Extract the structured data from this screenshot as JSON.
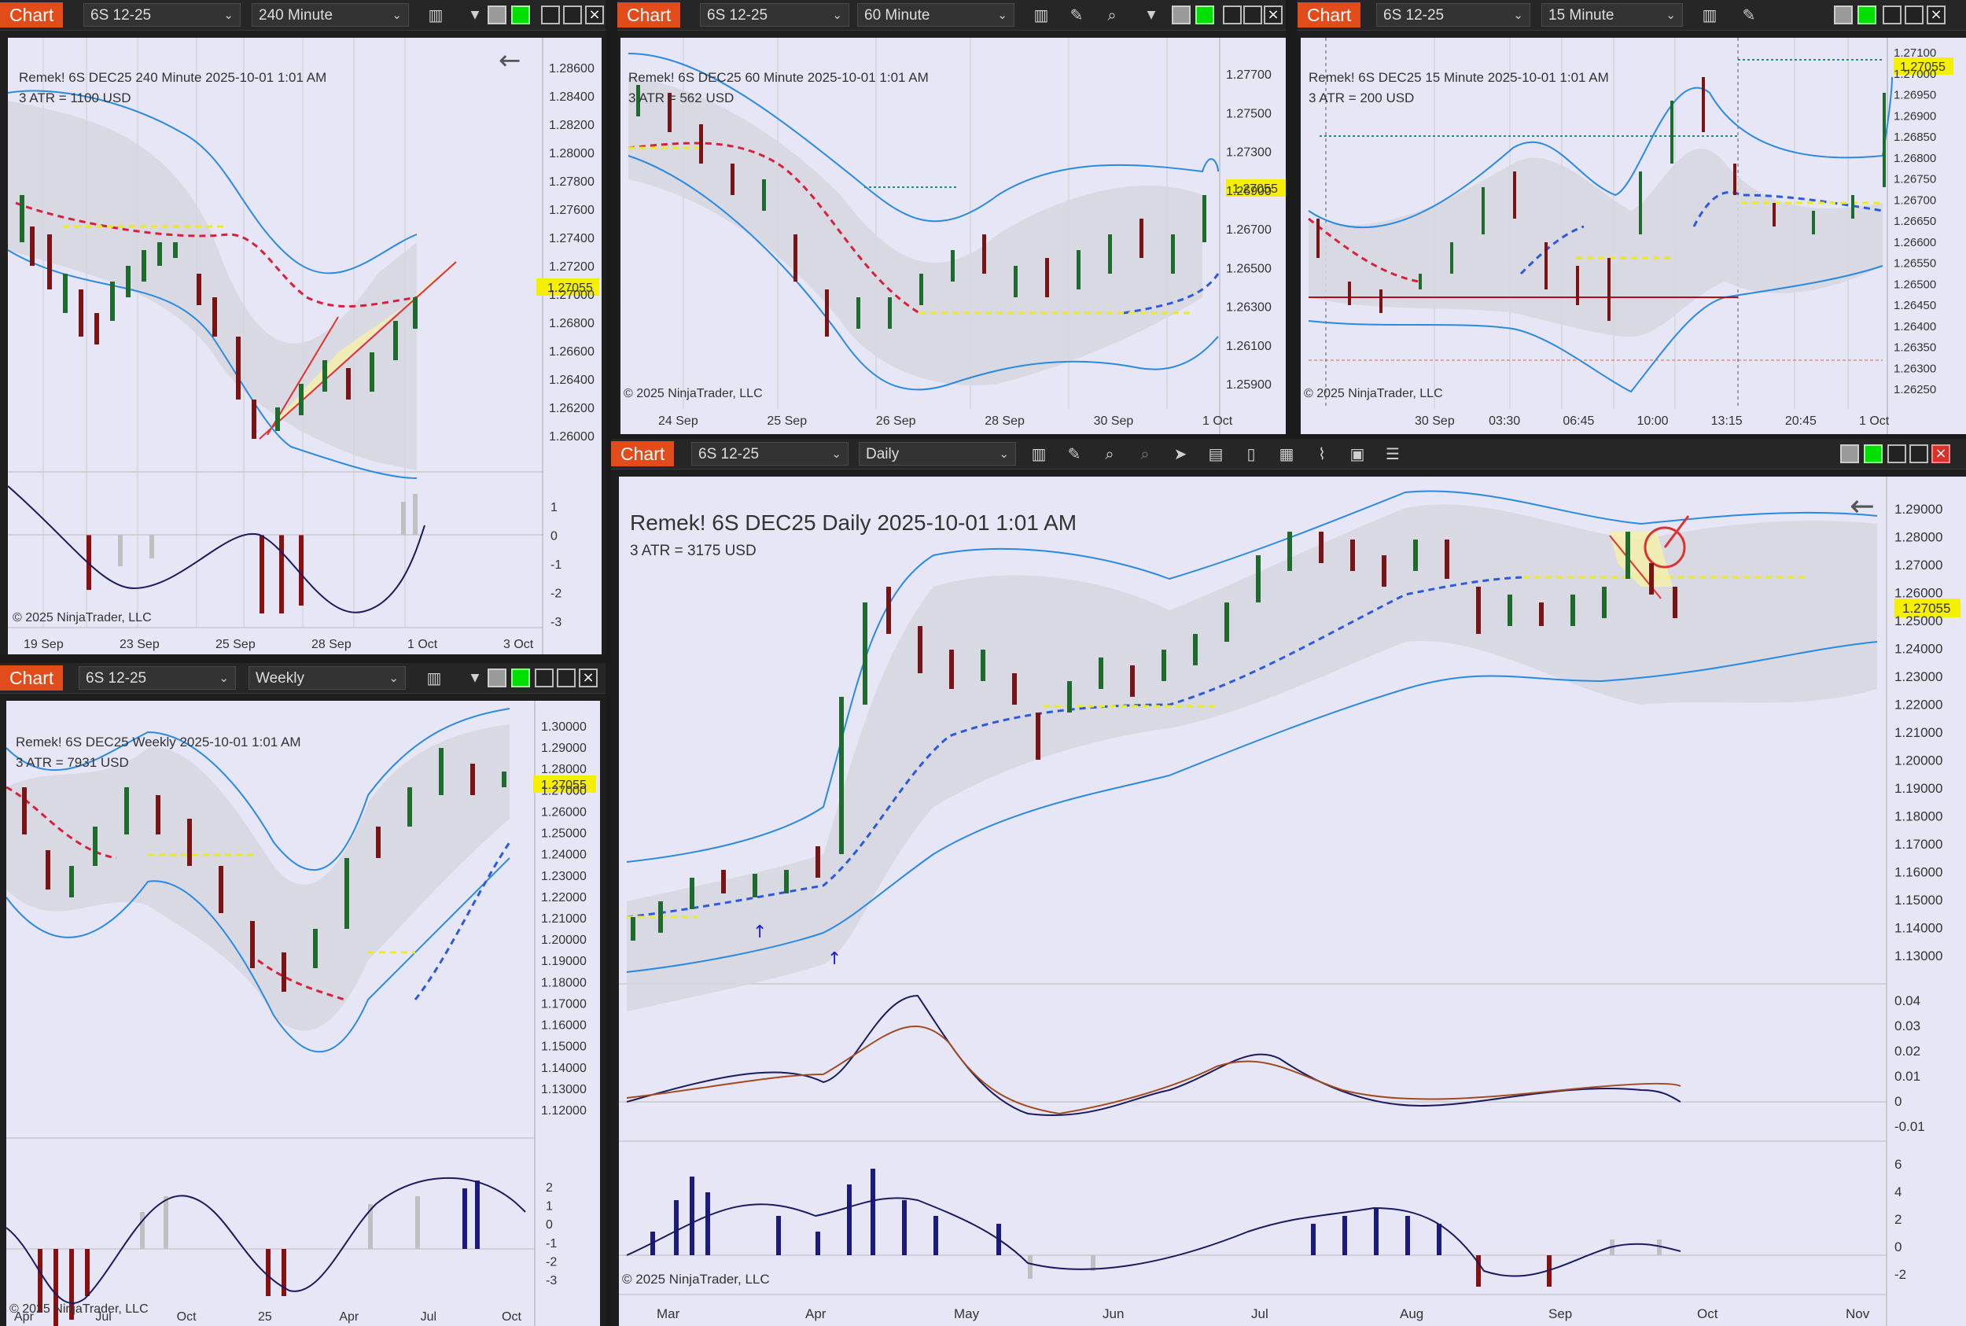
{
  "toolbar": {
    "chart_label": "Chart"
  },
  "windows": {
    "w240": {
      "instrument": "6S 12-25",
      "period": "240 Minute",
      "title_line": "Remek!  6S DEC25  240 Minute  2025-10-01 1:01 AM",
      "atr_line": "3 ATR = 1100 USD",
      "price_tag": "1.27055",
      "copyright": "© 2025 NinjaTrader, LLC",
      "y_ticks": [
        "1.28600",
        "1.28400",
        "1.28200",
        "1.28000",
        "1.27800",
        "1.27600",
        "1.27400",
        "1.27200",
        "1.27000",
        "1.26800",
        "1.26600",
        "1.26400",
        "1.26200",
        "1.26000"
      ],
      "osc_ticks": [
        "1",
        "0",
        "-1",
        "-2",
        "-3"
      ],
      "x_ticks": [
        "19 Sep",
        "23 Sep",
        "25 Sep",
        "28 Sep",
        "1 Oct",
        "3 Oct"
      ]
    },
    "w60": {
      "instrument": "6S 12-25",
      "period": "60 Minute",
      "title_line": "Remek!  6S DEC25  60 Minute  2025-10-01 1:01 AM",
      "atr_line": "3 ATR = 562 USD",
      "price_tag": "1.27055",
      "copyright": "© 2025 NinjaTrader, LLC",
      "y_ticks": [
        "1.27700",
        "1.27500",
        "1.27300",
        "1.26900",
        "1.26700",
        "1.26500",
        "1.26300",
        "1.26100",
        "1.25900"
      ],
      "x_ticks": [
        "24 Sep",
        "25 Sep",
        "26 Sep",
        "28 Sep",
        "30 Sep",
        "1 Oct"
      ]
    },
    "w15": {
      "instrument": "6S 12-25",
      "period": "15 Minute",
      "title_line": "Remek!  6S DEC25  15 Minute  2025-10-01 1:01 AM",
      "atr_line": "3 ATR = 200 USD",
      "price_tag": "1.27055",
      "copyright": "© 2025 NinjaTrader, LLC",
      "y_ticks": [
        "1.27100",
        "1.27000",
        "1.26950",
        "1.26900",
        "1.26850",
        "1.26800",
        "1.26750",
        "1.26700",
        "1.26650",
        "1.26600",
        "1.26550",
        "1.26500",
        "1.26450",
        "1.26400",
        "1.26350",
        "1.26300",
        "1.26250"
      ],
      "x_ticks": [
        "30 Sep",
        "03:30",
        "06:45",
        "10:00",
        "13:15",
        "20:45",
        "1 Oct"
      ]
    },
    "wW": {
      "instrument": "6S 12-25",
      "period": "Weekly",
      "title_line": "Remek!  6S DEC25  Weekly  2025-10-01 1:01 AM",
      "atr_line": "3 ATR = 7931 USD",
      "price_tag": "1.27055",
      "copyright": "© 2025 NinjaTrader, LLC",
      "y_ticks": [
        "1.30000",
        "1.29000",
        "1.28000",
        "1.27000",
        "1.26000",
        "1.25000",
        "1.24000",
        "1.23000",
        "1.22000",
        "1.21000",
        "1.20000",
        "1.19000",
        "1.18000",
        "1.17000",
        "1.16000",
        "1.15000",
        "1.14000",
        "1.13000",
        "1.12000"
      ],
      "osc_ticks": [
        "2",
        "1",
        "0",
        "-1",
        "-2",
        "-3"
      ],
      "x_ticks": [
        "Apr",
        "Jul",
        "Oct",
        "25",
        "Apr",
        "Jul",
        "Oct"
      ]
    },
    "wD": {
      "instrument": "6S 12-25",
      "period": "Daily",
      "title_line": "Remek!  6S DEC25  Daily  2025-10-01 1:01 AM",
      "atr_line": "3 ATR = 3175 USD",
      "price_tag": "1.27055",
      "copyright": "© 2025 NinjaTrader, LLC",
      "y_ticks": [
        "1.29000",
        "1.28000",
        "1.27000",
        "1.26000",
        "1.25000",
        "1.24000",
        "1.23000",
        "1.22000",
        "1.21000",
        "1.20000",
        "1.19000",
        "1.18000",
        "1.17000",
        "1.16000",
        "1.15000",
        "1.14000",
        "1.13000"
      ],
      "osc1_ticks": [
        "0.04",
        "0.03",
        "0.02",
        "0.01",
        "0",
        "-0.01"
      ],
      "osc2_ticks": [
        "6",
        "4",
        "2",
        "0",
        "-2"
      ],
      "x_ticks": [
        "Mar",
        "Apr",
        "May",
        "Jun",
        "Jul",
        "Aug",
        "Sep",
        "Oct",
        "Nov"
      ]
    }
  },
  "colors": {
    "accent": "#e24c1b",
    "up": "#1e6b2e",
    "down": "#7a1414",
    "band": "#3d8fe0",
    "price_tag": "#f5f000"
  }
}
